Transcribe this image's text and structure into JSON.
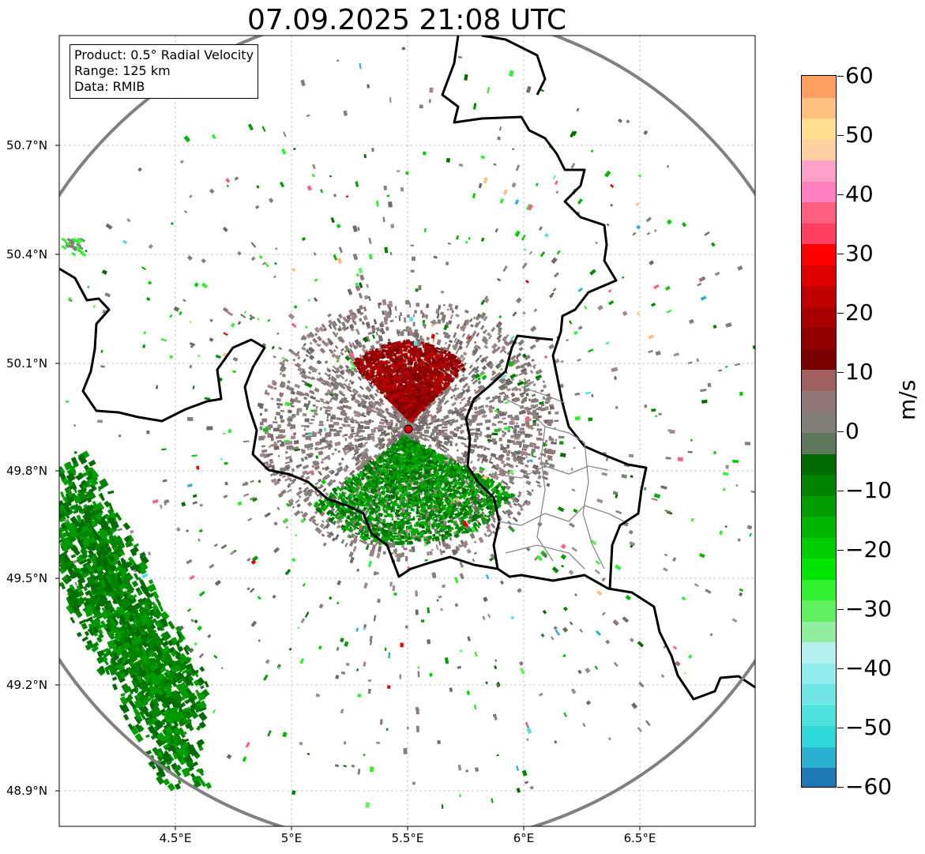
{
  "title": "07.09.2025 21:08 UTC",
  "info_box": {
    "product": "Product: 0.5° Radial Velocity",
    "range": "Range: 125 km",
    "data": "Data: RMIB"
  },
  "map": {
    "lat_labels": [
      "50.7°N",
      "50.4°N",
      "50.1°N",
      "49.8°N",
      "49.5°N",
      "49.2°N",
      "48.9°N"
    ],
    "lon_labels": [
      "4.5°E",
      "5°E",
      "5.5°E",
      "6°E",
      "6.5°E"
    ],
    "radar_site": {
      "lon": 5.505,
      "lat": 49.914
    },
    "range_ring_km": 125
  },
  "colorbar": {
    "unit": "m/s",
    "min": -60,
    "max": 60,
    "tick_labels": [
      "60",
      "50",
      "40",
      "30",
      "20",
      "10",
      "0",
      "−10",
      "−20",
      "−30",
      "−40",
      "−50",
      "−60"
    ],
    "colors": [
      "#1f77b4",
      "#2ab0d0",
      "#2ed8d8",
      "#4fe0e0",
      "#6ee6e6",
      "#92ecec",
      "#b5efef",
      "#90f0a0",
      "#60f060",
      "#30f030",
      "#00e400",
      "#00cc00",
      "#00b400",
      "#009c00",
      "#008400",
      "#006c00",
      "#607860",
      "#808078",
      "#907878",
      "#a06060",
      "#780000",
      "#900000",
      "#a80000",
      "#c00000",
      "#e00000",
      "#ff0000",
      "#ff4060",
      "#ff6080",
      "#ff80c0",
      "#ffa0c8",
      "#ffd0a0",
      "#ffe090",
      "#ffc080",
      "#ffa060"
    ]
  }
}
